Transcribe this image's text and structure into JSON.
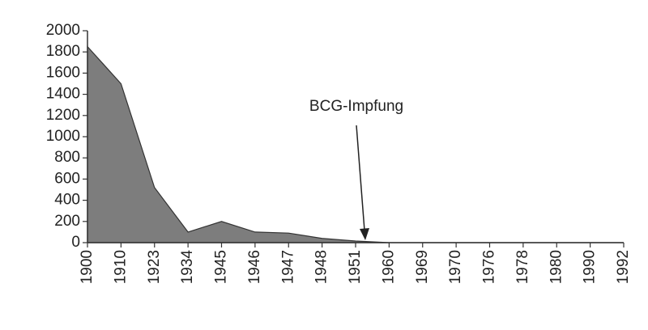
{
  "chart_data": {
    "type": "area",
    "categories": [
      "1900",
      "1910",
      "1923",
      "1934",
      "1945",
      "1946",
      "1947",
      "1948",
      "1951",
      "1960",
      "1969",
      "1970",
      "1976",
      "1978",
      "1980",
      "1990",
      "1992"
    ],
    "values": [
      1850,
      1500,
      520,
      100,
      200,
      100,
      90,
      40,
      15,
      0,
      0,
      0,
      0,
      0,
      0,
      0,
      0
    ],
    "color": "#7d7d7d",
    "ylim": [
      0,
      2000
    ],
    "yticks": [
      0,
      200,
      400,
      600,
      800,
      1000,
      1200,
      1400,
      1600,
      1800,
      2000
    ],
    "annotation": "BCG-Impfung"
  }
}
